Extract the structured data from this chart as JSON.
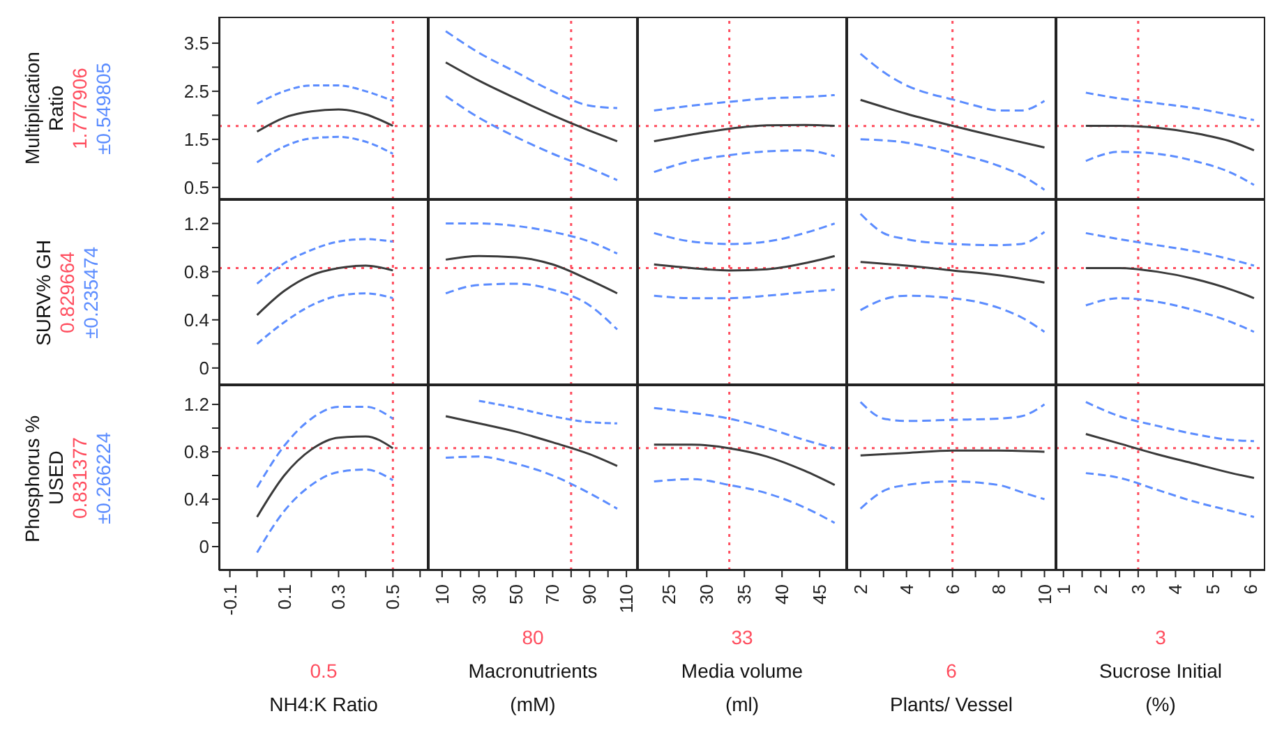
{
  "chart_data": [
    {
      "type": "line",
      "ylabel": "Multiplication Ratio",
      "annotations": [
        "±0.549805"
      ],
      "tick_labels": "y",
      "xlim": [
        -0.14,
        0.63
      ],
      "ylim": [
        0.25,
        4.05
      ],
      "yticks": [
        0.5,
        {
          "value": 1,
          "label": null
        },
        1.5,
        {
          "value": 2,
          "label": null
        },
        2.5,
        {
          "value": 3,
          "label": null
        },
        3.5
      ],
      "series": [
        {
          "color": "#3a3a3a",
          "x": [
            0,
            0.1,
            0.2,
            0.3,
            0.4,
            0.5
          ],
          "values": [
            1.66,
            1.95,
            2.08,
            2.12,
            2.02,
            1.78
          ]
        },
        {
          "color": "#5b8cff",
          "line_style": "dashed",
          "x": [
            0,
            0.1,
            0.2,
            0.3,
            0.4,
            0.5
          ],
          "values": [
            2.24,
            2.5,
            2.62,
            2.62,
            2.5,
            2.3
          ]
        },
        {
          "color": "#5b8cff",
          "line_style": "dashed",
          "x": [
            0,
            0.1,
            0.2,
            0.3,
            0.4,
            0.5
          ],
          "values": [
            1.02,
            1.35,
            1.52,
            1.55,
            1.45,
            1.2
          ]
        }
      ],
      "ref_lines": [
        {
          "axis": "y",
          "value": 1.777906,
          "label": "1.777906",
          "color": "#ff4d5e",
          "line_style": "dotted"
        },
        {
          "axis": "x",
          "value": 0.5,
          "color": "#ff4d5e",
          "line_style": "dotted"
        }
      ]
    },
    {
      "type": "line",
      "tick_labels": false,
      "xlim": [
        2.5,
        116
      ],
      "ylim": [
        0.25,
        4.05
      ],
      "series": [
        {
          "color": "#3a3a3a",
          "x": [
            12,
            30,
            50,
            70,
            90,
            105
          ],
          "values": [
            3.1,
            2.72,
            2.35,
            2.0,
            1.68,
            1.46
          ]
        },
        {
          "color": "#5b8cff",
          "line_style": "dashed",
          "x": [
            12,
            30,
            50,
            70,
            90,
            105
          ],
          "values": [
            3.75,
            3.3,
            2.9,
            2.5,
            2.2,
            2.15
          ]
        },
        {
          "color": "#5b8cff",
          "line_style": "dashed",
          "x": [
            12,
            30,
            50,
            70,
            90,
            105
          ],
          "values": [
            2.4,
            1.95,
            1.55,
            1.2,
            0.9,
            0.65
          ]
        }
      ],
      "ref_lines": [
        {
          "axis": "y",
          "value": 1.777906,
          "color": "#ff4d5e",
          "line_style": "dotted"
        },
        {
          "axis": "x",
          "value": 80,
          "color": "#ff4d5e",
          "line_style": "dotted"
        }
      ]
    },
    {
      "type": "line",
      "tick_labels": false,
      "xlim": [
        20.8,
        48.6
      ],
      "ylim": [
        0.25,
        4.05
      ],
      "series": [
        {
          "color": "#3a3a3a",
          "x": [
            23,
            28,
            33,
            38,
            43,
            47
          ],
          "values": [
            1.46,
            1.6,
            1.72,
            1.79,
            1.8,
            1.78
          ]
        },
        {
          "color": "#5b8cff",
          "line_style": "dashed",
          "x": [
            23,
            28,
            33,
            38,
            43,
            47
          ],
          "values": [
            2.1,
            2.2,
            2.28,
            2.35,
            2.38,
            2.42
          ]
        },
        {
          "color": "#5b8cff",
          "line_style": "dashed",
          "x": [
            23,
            28,
            33,
            38,
            43,
            47
          ],
          "values": [
            0.82,
            1.05,
            1.17,
            1.25,
            1.27,
            1.15
          ]
        }
      ],
      "ref_lines": [
        {
          "axis": "y",
          "value": 1.777906,
          "color": "#ff4d5e",
          "line_style": "dotted"
        },
        {
          "axis": "x",
          "value": 33,
          "color": "#ff4d5e",
          "line_style": "dotted"
        }
      ]
    },
    {
      "type": "line",
      "tick_labels": false,
      "xlim": [
        1.4,
        10.5
      ],
      "ylim": [
        0.25,
        4.05
      ],
      "series": [
        {
          "color": "#3a3a3a",
          "x": [
            2,
            4,
            6,
            8,
            10
          ],
          "values": [
            2.32,
            2.03,
            1.78,
            1.55,
            1.33
          ]
        },
        {
          "color": "#5b8cff",
          "line_style": "dashed",
          "x": [
            2,
            3,
            4,
            5,
            6,
            7,
            8,
            9,
            10
          ],
          "values": [
            3.28,
            2.9,
            2.62,
            2.45,
            2.33,
            2.2,
            2.1,
            2.1,
            2.3
          ]
        },
        {
          "color": "#5b8cff",
          "line_style": "dashed",
          "x": [
            2,
            4,
            6,
            8,
            9,
            10
          ],
          "values": [
            1.5,
            1.43,
            1.22,
            0.95,
            0.75,
            0.45
          ]
        }
      ],
      "ref_lines": [
        {
          "axis": "y",
          "value": 1.777906,
          "color": "#ff4d5e",
          "line_style": "dotted"
        },
        {
          "axis": "x",
          "value": 6,
          "color": "#ff4d5e",
          "line_style": "dotted"
        }
      ]
    },
    {
      "type": "line",
      "tick_labels": false,
      "xlim": [
        0.8,
        6.4
      ],
      "ylim": [
        0.25,
        4.05
      ],
      "series": [
        {
          "color": "#3a3a3a",
          "x": [
            1.6,
            2.5,
            3.5,
            4.5,
            5.5,
            6.1
          ],
          "values": [
            1.78,
            1.78,
            1.74,
            1.63,
            1.45,
            1.27
          ]
        },
        {
          "color": "#5b8cff",
          "line_style": "dashed",
          "x": [
            1.6,
            2.5,
            3.5,
            4.5,
            5.5,
            6.1
          ],
          "values": [
            2.47,
            2.35,
            2.25,
            2.15,
            2.0,
            1.9
          ]
        },
        {
          "color": "#5b8cff",
          "line_style": "dashed",
          "x": [
            1.6,
            2.5,
            3.5,
            4.5,
            5.5,
            6.1
          ],
          "values": [
            1.05,
            1.24,
            1.2,
            1.05,
            0.8,
            0.55
          ]
        }
      ],
      "ref_lines": [
        {
          "axis": "y",
          "value": 1.777906,
          "color": "#ff4d5e",
          "line_style": "dotted"
        },
        {
          "axis": "x",
          "value": 3,
          "color": "#ff4d5e",
          "line_style": "dotted"
        }
      ]
    },
    {
      "type": "line",
      "ylabel": "SURV% GH",
      "annotations": [
        "±0.235474"
      ],
      "tick_labels": "y",
      "xlim": [
        -0.14,
        0.63
      ],
      "ylim": [
        -0.14,
        1.4
      ],
      "yticks": [
        0,
        {
          "value": 0.2,
          "label": null
        },
        0.4,
        {
          "value": 0.6,
          "label": null
        },
        0.8,
        {
          "value": 1,
          "label": null
        },
        1.2
      ],
      "series": [
        {
          "color": "#3a3a3a",
          "x": [
            0,
            0.1,
            0.2,
            0.3,
            0.4,
            0.5
          ],
          "values": [
            0.44,
            0.64,
            0.77,
            0.83,
            0.85,
            0.81
          ]
        },
        {
          "color": "#5b8cff",
          "line_style": "dashed",
          "x": [
            0,
            0.1,
            0.2,
            0.3,
            0.4,
            0.5
          ],
          "values": [
            0.7,
            0.87,
            0.98,
            1.05,
            1.07,
            1.05
          ]
        },
        {
          "color": "#5b8cff",
          "line_style": "dashed",
          "x": [
            0,
            0.1,
            0.2,
            0.3,
            0.4,
            0.5
          ],
          "values": [
            0.2,
            0.38,
            0.52,
            0.6,
            0.62,
            0.58
          ]
        }
      ],
      "ref_lines": [
        {
          "axis": "y",
          "value": 0.829664,
          "label": "0.829664",
          "color": "#ff4d5e",
          "line_style": "dotted"
        },
        {
          "axis": "x",
          "value": 0.5,
          "color": "#ff4d5e",
          "line_style": "dotted"
        }
      ]
    },
    {
      "type": "line",
      "tick_labels": false,
      "xlim": [
        2.5,
        116
      ],
      "ylim": [
        -0.14,
        1.4
      ],
      "series": [
        {
          "color": "#3a3a3a",
          "x": [
            12,
            30,
            50,
            70,
            90,
            105
          ],
          "values": [
            0.9,
            0.93,
            0.92,
            0.86,
            0.73,
            0.62
          ]
        },
        {
          "color": "#5b8cff",
          "line_style": "dashed",
          "x": [
            12,
            30,
            50,
            70,
            90,
            105
          ],
          "values": [
            1.2,
            1.2,
            1.18,
            1.13,
            1.05,
            0.95
          ]
        },
        {
          "color": "#5b8cff",
          "line_style": "dashed",
          "x": [
            12,
            30,
            50,
            70,
            90,
            105
          ],
          "values": [
            0.62,
            0.69,
            0.7,
            0.65,
            0.52,
            0.32
          ]
        }
      ],
      "ref_lines": [
        {
          "axis": "y",
          "value": 0.829664,
          "color": "#ff4d5e",
          "line_style": "dotted"
        },
        {
          "axis": "x",
          "value": 80,
          "color": "#ff4d5e",
          "line_style": "dotted"
        }
      ]
    },
    {
      "type": "line",
      "tick_labels": false,
      "xlim": [
        20.8,
        48.6
      ],
      "ylim": [
        -0.14,
        1.4
      ],
      "series": [
        {
          "color": "#3a3a3a",
          "x": [
            23,
            28,
            33,
            38,
            43,
            47
          ],
          "values": [
            0.86,
            0.83,
            0.81,
            0.82,
            0.87,
            0.93
          ]
        },
        {
          "color": "#5b8cff",
          "line_style": "dashed",
          "x": [
            23,
            28,
            33,
            38,
            43,
            47
          ],
          "values": [
            1.12,
            1.05,
            1.03,
            1.05,
            1.12,
            1.2
          ]
        },
        {
          "color": "#5b8cff",
          "line_style": "dashed",
          "x": [
            23,
            28,
            33,
            38,
            43,
            47
          ],
          "values": [
            0.6,
            0.58,
            0.58,
            0.6,
            0.63,
            0.65
          ]
        }
      ],
      "ref_lines": [
        {
          "axis": "y",
          "value": 0.829664,
          "color": "#ff4d5e",
          "line_style": "dotted"
        },
        {
          "axis": "x",
          "value": 33,
          "color": "#ff4d5e",
          "line_style": "dotted"
        }
      ]
    },
    {
      "type": "line",
      "tick_labels": false,
      "xlim": [
        1.4,
        10.5
      ],
      "ylim": [
        -0.14,
        1.4
      ],
      "series": [
        {
          "color": "#3a3a3a",
          "x": [
            2,
            4,
            6,
            8,
            10
          ],
          "values": [
            0.88,
            0.85,
            0.81,
            0.77,
            0.71
          ]
        },
        {
          "color": "#5b8cff",
          "line_style": "dashed",
          "x": [
            2,
            3,
            4,
            6,
            8,
            9,
            10
          ],
          "values": [
            1.28,
            1.12,
            1.07,
            1.03,
            1.02,
            1.03,
            1.13
          ]
        },
        {
          "color": "#5b8cff",
          "line_style": "dashed",
          "x": [
            2,
            3,
            4,
            6,
            8,
            9,
            10
          ],
          "values": [
            0.48,
            0.57,
            0.6,
            0.58,
            0.5,
            0.42,
            0.3
          ]
        }
      ],
      "ref_lines": [
        {
          "axis": "y",
          "value": 0.829664,
          "color": "#ff4d5e",
          "line_style": "dotted"
        },
        {
          "axis": "x",
          "value": 6,
          "color": "#ff4d5e",
          "line_style": "dotted"
        }
      ]
    },
    {
      "type": "line",
      "tick_labels": false,
      "xlim": [
        0.8,
        6.4
      ],
      "ylim": [
        -0.14,
        1.4
      ],
      "series": [
        {
          "color": "#3a3a3a",
          "x": [
            1.6,
            2.5,
            3.5,
            4.5,
            5.5,
            6.1
          ],
          "values": [
            0.83,
            0.83,
            0.8,
            0.74,
            0.65,
            0.58
          ]
        },
        {
          "color": "#5b8cff",
          "line_style": "dashed",
          "x": [
            1.6,
            2.5,
            3.5,
            4.5,
            5.5,
            6.1
          ],
          "values": [
            1.12,
            1.07,
            1.02,
            0.97,
            0.9,
            0.85
          ]
        },
        {
          "color": "#5b8cff",
          "line_style": "dashed",
          "x": [
            1.6,
            2.5,
            3.5,
            4.5,
            5.5,
            6.1
          ],
          "values": [
            0.52,
            0.58,
            0.55,
            0.48,
            0.38,
            0.3
          ]
        }
      ],
      "ref_lines": [
        {
          "axis": "y",
          "value": 0.829664,
          "color": "#ff4d5e",
          "line_style": "dotted"
        },
        {
          "axis": "x",
          "value": 3,
          "color": "#ff4d5e",
          "line_style": "dotted"
        }
      ]
    },
    {
      "type": "line",
      "ylabel": "Phosphorus % USED",
      "xlabel": "NH4:K Ratio",
      "annotations": [
        "±0.266224"
      ],
      "xlim": [
        -0.14,
        0.63
      ],
      "ylim": [
        -0.2,
        1.365
      ],
      "xticks": [
        -0.1,
        {
          "value": 0,
          "label": null
        },
        0.1,
        {
          "value": 0.2,
          "label": null
        },
        0.3,
        {
          "value": 0.4,
          "label": null
        },
        0.5,
        {
          "value": 0.6,
          "label": null
        }
      ],
      "yticks": [
        0,
        {
          "value": 0.2,
          "label": null
        },
        0.4,
        {
          "value": 0.6,
          "label": null
        },
        0.8,
        {
          "value": 1,
          "label": null
        },
        1.2
      ],
      "series": [
        {
          "color": "#3a3a3a",
          "x": [
            0,
            0.1,
            0.2,
            0.3,
            0.4,
            0.5
          ],
          "values": [
            0.25,
            0.6,
            0.82,
            0.92,
            0.93,
            0.83
          ]
        },
        {
          "color": "#5b8cff",
          "line_style": "dashed",
          "x": [
            0,
            0.1,
            0.2,
            0.3,
            0.4,
            0.5
          ],
          "values": [
            0.5,
            0.85,
            1.08,
            1.18,
            1.18,
            1.08
          ]
        },
        {
          "color": "#5b8cff",
          "line_style": "dashed",
          "x": [
            0,
            0.1,
            0.2,
            0.3,
            0.4,
            0.5
          ],
          "values": [
            -0.05,
            0.3,
            0.52,
            0.63,
            0.65,
            0.56
          ]
        }
      ],
      "ref_lines": [
        {
          "axis": "y",
          "value": 0.831377,
          "label": "0.831377",
          "color": "#ff4d5e",
          "line_style": "dotted"
        },
        {
          "axis": "x",
          "value": 0.5,
          "label": "0.5",
          "color": "#ff4d5e",
          "line_style": "dotted"
        }
      ]
    },
    {
      "type": "line",
      "xlabel": "Macronutrients (mM)",
      "tick_labels": "x",
      "xlim": [
        2.5,
        116
      ],
      "ylim": [
        -0.2,
        1.365
      ],
      "xticks": [
        10,
        {
          "value": 20,
          "label": null
        },
        30,
        {
          "value": 40,
          "label": null
        },
        50,
        {
          "value": 60,
          "label": null
        },
        70,
        {
          "value": 80,
          "label": null
        },
        90,
        {
          "value": 100,
          "label": null
        },
        110
      ],
      "series": [
        {
          "color": "#3a3a3a",
          "x": [
            12,
            30,
            50,
            70,
            90,
            105
          ],
          "values": [
            1.1,
            1.04,
            0.97,
            0.88,
            0.78,
            0.68
          ]
        },
        {
          "color": "#5b8cff",
          "line_style": "dashed",
          "x": [
            30,
            50,
            70,
            90,
            105
          ],
          "values": [
            1.23,
            1.17,
            1.1,
            1.05,
            1.04
          ]
        },
        {
          "color": "#5b8cff",
          "line_style": "dashed",
          "x": [
            12,
            30,
            50,
            70,
            90,
            105
          ],
          "values": [
            0.75,
            0.76,
            0.7,
            0.6,
            0.45,
            0.32
          ]
        }
      ],
      "ref_lines": [
        {
          "axis": "y",
          "value": 0.831377,
          "color": "#ff4d5e",
          "line_style": "dotted"
        },
        {
          "axis": "x",
          "value": 80,
          "label": "80",
          "color": "#ff4d5e",
          "line_style": "dotted"
        }
      ]
    },
    {
      "type": "line",
      "xlabel": "Media volume (ml)",
      "tick_labels": "x",
      "xlim": [
        20.8,
        48.6
      ],
      "ylim": [
        -0.2,
        1.365
      ],
      "xticks": [
        25,
        30,
        35,
        40,
        45
      ],
      "series": [
        {
          "color": "#3a3a3a",
          "x": [
            23,
            28,
            33,
            38,
            43,
            47
          ],
          "values": [
            0.86,
            0.86,
            0.83,
            0.76,
            0.64,
            0.52
          ]
        },
        {
          "color": "#5b8cff",
          "line_style": "dashed",
          "x": [
            23,
            28,
            33,
            38,
            43,
            47
          ],
          "values": [
            1.17,
            1.13,
            1.08,
            1.0,
            0.9,
            0.83
          ]
        },
        {
          "color": "#5b8cff",
          "line_style": "dashed",
          "x": [
            23,
            28,
            33,
            38,
            43,
            47
          ],
          "values": [
            0.55,
            0.57,
            0.52,
            0.45,
            0.33,
            0.2
          ]
        }
      ],
      "ref_lines": [
        {
          "axis": "y",
          "value": 0.831377,
          "color": "#ff4d5e",
          "line_style": "dotted"
        },
        {
          "axis": "x",
          "value": 33,
          "label": "33",
          "color": "#ff4d5e",
          "line_style": "dotted"
        }
      ]
    },
    {
      "type": "line",
      "xlabel": "Plants/ Vessel",
      "tick_labels": "x",
      "xlim": [
        1.4,
        10.5
      ],
      "ylim": [
        -0.2,
        1.365
      ],
      "xticks": [
        2,
        {
          "value": 3,
          "label": null
        },
        4,
        {
          "value": 5,
          "label": null
        },
        6,
        {
          "value": 7,
          "label": null
        },
        8,
        {
          "value": 9,
          "label": null
        },
        10
      ],
      "series": [
        {
          "color": "#3a3a3a",
          "x": [
            2,
            4,
            6,
            8,
            10
          ],
          "values": [
            0.77,
            0.79,
            0.81,
            0.81,
            0.8
          ]
        },
        {
          "color": "#5b8cff",
          "line_style": "dashed",
          "x": [
            2,
            3,
            4,
            6,
            8,
            9,
            10
          ],
          "values": [
            1.22,
            1.08,
            1.06,
            1.07,
            1.08,
            1.1,
            1.2
          ]
        },
        {
          "color": "#5b8cff",
          "line_style": "dashed",
          "x": [
            2,
            3,
            4,
            6,
            8,
            9,
            10
          ],
          "values": [
            0.32,
            0.47,
            0.52,
            0.55,
            0.52,
            0.46,
            0.4
          ]
        }
      ],
      "ref_lines": [
        {
          "axis": "y",
          "value": 0.831377,
          "color": "#ff4d5e",
          "line_style": "dotted"
        },
        {
          "axis": "x",
          "value": 6,
          "label": "6",
          "color": "#ff4d5e",
          "line_style": "dotted"
        }
      ]
    },
    {
      "type": "line",
      "xlabel": "Sucrose Initial (%)",
      "tick_labels": "x",
      "xlim": [
        0.8,
        6.4
      ],
      "ylim": [
        -0.2,
        1.365
      ],
      "xticks": [
        1,
        {
          "value": 1.5,
          "label": null
        },
        2,
        {
          "value": 2.5,
          "label": null
        },
        3,
        {
          "value": 3.5,
          "label": null
        },
        4,
        {
          "value": 4.5,
          "label": null
        },
        5,
        {
          "value": 5.5,
          "label": null
        },
        6
      ],
      "series": [
        {
          "color": "#3a3a3a",
          "x": [
            1.6,
            2.5,
            3.5,
            4.5,
            5.5,
            6.1
          ],
          "values": [
            0.95,
            0.87,
            0.78,
            0.7,
            0.62,
            0.58
          ]
        },
        {
          "color": "#5b8cff",
          "line_style": "dashed",
          "x": [
            1.6,
            2.5,
            3.5,
            4.5,
            5.5,
            6.1
          ],
          "values": [
            1.22,
            1.1,
            1.02,
            0.95,
            0.9,
            0.89
          ]
        },
        {
          "color": "#5b8cff",
          "line_style": "dashed",
          "x": [
            1.6,
            2.5,
            3.5,
            4.5,
            5.5,
            6.1
          ],
          "values": [
            0.62,
            0.58,
            0.48,
            0.38,
            0.3,
            0.25
          ]
        }
      ],
      "ref_lines": [
        {
          "axis": "y",
          "value": 0.831377,
          "color": "#ff4d5e",
          "line_style": "dotted"
        },
        {
          "axis": "x",
          "value": 3,
          "label": "3",
          "color": "#ff4d5e",
          "line_style": "dotted"
        }
      ]
    }
  ]
}
